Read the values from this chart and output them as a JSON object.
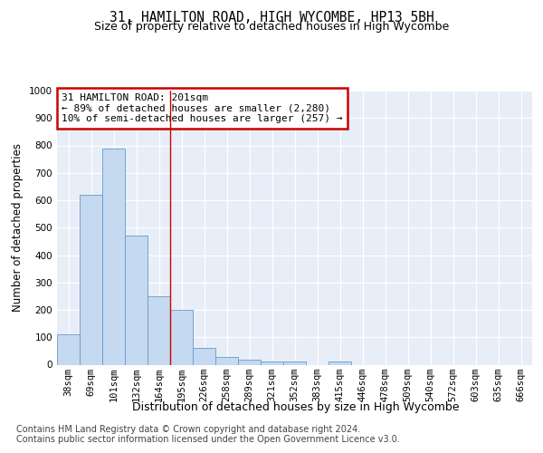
{
  "title_line1": "31, HAMILTON ROAD, HIGH WYCOMBE, HP13 5BH",
  "title_line2": "Size of property relative to detached houses in High Wycombe",
  "xlabel": "Distribution of detached houses by size in High Wycombe",
  "ylabel": "Number of detached properties",
  "bar_color": "#c5d9f0",
  "bar_edge_color": "#6699cc",
  "bins": [
    "38sqm",
    "69sqm",
    "101sqm",
    "132sqm",
    "164sqm",
    "195sqm",
    "226sqm",
    "258sqm",
    "289sqm",
    "321sqm",
    "352sqm",
    "383sqm",
    "415sqm",
    "446sqm",
    "478sqm",
    "509sqm",
    "540sqm",
    "572sqm",
    "603sqm",
    "635sqm",
    "666sqm"
  ],
  "values": [
    110,
    620,
    790,
    470,
    250,
    200,
    60,
    27,
    18,
    13,
    10,
    0,
    10,
    0,
    0,
    0,
    0,
    0,
    0,
    0,
    0
  ],
  "ylim": [
    0,
    1000
  ],
  "yticks": [
    0,
    100,
    200,
    300,
    400,
    500,
    600,
    700,
    800,
    900,
    1000
  ],
  "vline_x": 4.5,
  "annotation_text": "31 HAMILTON ROAD: 201sqm\n← 89% of detached houses are smaller (2,280)\n10% of semi-detached houses are larger (257) →",
  "annotation_box_color": "#ffffff",
  "annotation_border_color": "#cc0000",
  "footer_line1": "Contains HM Land Registry data © Crown copyright and database right 2024.",
  "footer_line2": "Contains public sector information licensed under the Open Government Licence v3.0.",
  "background_color": "#e8eef8",
  "grid_color": "#ffffff",
  "title_fontsize": 10.5,
  "subtitle_fontsize": 9,
  "axis_label_fontsize": 8.5,
  "tick_fontsize": 7.5,
  "annotation_fontsize": 8,
  "footer_fontsize": 7
}
